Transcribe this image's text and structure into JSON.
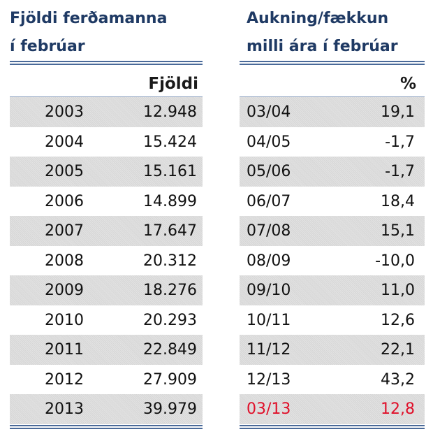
{
  "left_table": {
    "title_line1": "Fjöldi ferðamanna",
    "title_line2": "í febrúar",
    "column_header": "Fjöldi",
    "rows": [
      {
        "year": "2003",
        "count": "12.948"
      },
      {
        "year": "2004",
        "count": "15.424"
      },
      {
        "year": "2005",
        "count": "15.161"
      },
      {
        "year": "2006",
        "count": "14.899"
      },
      {
        "year": "2007",
        "count": "17.647"
      },
      {
        "year": "2008",
        "count": "20.312"
      },
      {
        "year": "2009",
        "count": "18.276"
      },
      {
        "year": "2010",
        "count": "20.293"
      },
      {
        "year": "2011",
        "count": "22.849"
      },
      {
        "year": "2012",
        "count": "27.909"
      },
      {
        "year": "2013",
        "count": "39.979"
      }
    ]
  },
  "right_table": {
    "title_line1": "Aukning/fækkun",
    "title_line2": "milli ára í febrúar",
    "column_header": "%",
    "rows": [
      {
        "period": "03/04",
        "change": "19,1"
      },
      {
        "period": "04/05",
        "change": "-1,7"
      },
      {
        "period": "05/06",
        "change": "-1,7"
      },
      {
        "period": "06/07",
        "change": "18,4"
      },
      {
        "period": "07/08",
        "change": "15,1"
      },
      {
        "period": "08/09",
        "change": "-10,0"
      },
      {
        "period": "09/10",
        "change": "11,0"
      },
      {
        "period": "10/11",
        "change": "12,6"
      },
      {
        "period": "11/12",
        "change": "22,1"
      },
      {
        "period": "12/13",
        "change": "43,2"
      },
      {
        "period": "03/13",
        "change": "12,8"
      }
    ]
  },
  "colors": {
    "title": "#1f3a64",
    "rule": "#4a6a99",
    "highlight": "#e0102a",
    "shade": "#dcdcdc"
  }
}
